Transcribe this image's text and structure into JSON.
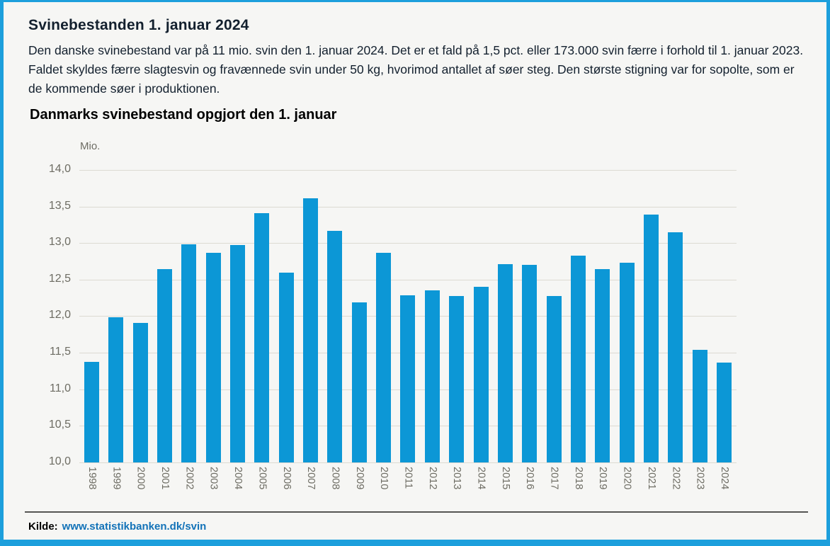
{
  "page": {
    "title": "Svinebestanden 1. januar 2024",
    "body_text": "Den danske svinebestand var på 11 mio. svin den 1. januar 2024. Det er et fald på 1,5 pct. eller 173.000 svin færre i forhold til 1. januar 2023. Faldet skyldes færre slagtesvin og fravænnede svin under 50 kg, hvorimod antallet af søer steg. Den største stigning var for sopolte, som er de kommende søer i produktionen."
  },
  "source": {
    "label": "Kilde:",
    "link_text": "www.statistikbanken.dk/svin"
  },
  "colors": {
    "bar": "#0c97d6",
    "frame": "#1d9fdc",
    "link": "#1272b8",
    "gridline": "#dcdad2",
    "tick_text": "#6d6c63"
  },
  "chart_data": {
    "type": "bar",
    "title": "Danmarks svinebestand opgjort den 1. januar",
    "unit_label": "Mio.",
    "xlabel": "",
    "ylabel": "Mio.",
    "categories": [
      "1998",
      "1999",
      "2000",
      "2001",
      "2002",
      "2003",
      "2004",
      "2005",
      "2006",
      "2007",
      "2008",
      "2009",
      "2010",
      "2011",
      "2012",
      "2013",
      "2014",
      "2015",
      "2016",
      "2017",
      "2018",
      "2019",
      "2020",
      "2021",
      "2022",
      "2023",
      "2024"
    ],
    "values": [
      11.38,
      11.99,
      11.91,
      12.64,
      12.98,
      12.87,
      12.97,
      13.41,
      12.6,
      13.61,
      13.17,
      12.19,
      12.87,
      12.29,
      12.35,
      12.28,
      12.4,
      12.71,
      12.7,
      12.28,
      12.83,
      12.64,
      12.73,
      13.39,
      13.15,
      11.54,
      11.37
    ],
    "ylim": [
      10.0,
      14.0
    ],
    "ytick_labels": [
      "10,0",
      "10,5",
      "11,0",
      "11,5",
      "12,0",
      "12,5",
      "13,0",
      "13,5",
      "14,0"
    ],
    "ytick_values": [
      10.0,
      10.5,
      11.0,
      11.5,
      12.0,
      12.5,
      13.0,
      13.5,
      14.0
    ],
    "grid": true,
    "legend": false
  }
}
